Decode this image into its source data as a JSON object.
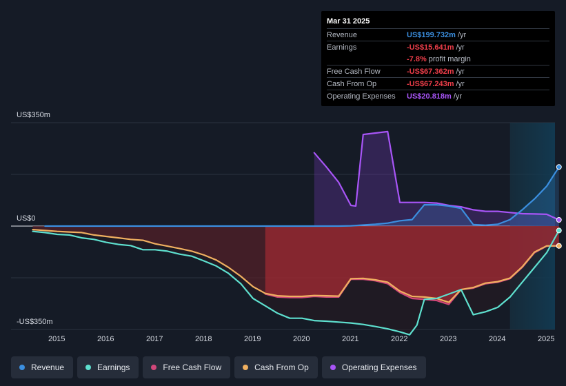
{
  "tooltip": {
    "date": "Mar 31 2025",
    "rows": [
      {
        "label": "Revenue",
        "value": "US$199.732m",
        "unit": "/yr",
        "color": "#3b8fe0"
      },
      {
        "label": "Earnings",
        "value": "-US$15.641m",
        "unit": "/yr",
        "color": "#ef3e4a"
      },
      {
        "label": "",
        "value": "-7.8%",
        "unit": "profit margin",
        "color": "#ef3e4a"
      },
      {
        "label": "Free Cash Flow",
        "value": "-US$67.362m",
        "unit": "/yr",
        "color": "#ef3e4a"
      },
      {
        "label": "Cash From Op",
        "value": "-US$67.243m",
        "unit": "/yr",
        "color": "#ef3e4a"
      },
      {
        "label": "Operating Expenses",
        "value": "US$20.818m",
        "unit": "/yr",
        "color": "#a855f7"
      }
    ]
  },
  "legend": [
    {
      "label": "Revenue",
      "color": "#3b8fe0"
    },
    {
      "label": "Earnings",
      "color": "#5ee0cf"
    },
    {
      "label": "Free Cash Flow",
      "color": "#d1477a"
    },
    {
      "label": "Cash From Op",
      "color": "#f0b060"
    },
    {
      "label": "Operating Expenses",
      "color": "#a855f7"
    }
  ],
  "chart_data": {
    "type": "area",
    "y_labels": [
      "US$350m",
      "US$0",
      "-US$350m"
    ],
    "ylim": [
      -350,
      350
    ],
    "xlim": [
      2014.5,
      2025.25
    ],
    "x_ticks": [
      "2015",
      "2016",
      "2017",
      "2018",
      "2019",
      "2020",
      "2021",
      "2022",
      "2023",
      "2024",
      "2025"
    ],
    "highlight_from": 2024.25,
    "series": [
      {
        "name": "Revenue",
        "color": "#3b8fe0",
        "points": [
          [
            2014.75,
            0
          ],
          [
            2016,
            0
          ],
          [
            2018,
            0
          ],
          [
            2019,
            0
          ],
          [
            2020,
            0
          ],
          [
            2020.75,
            0
          ],
          [
            2021,
            1
          ],
          [
            2021.5,
            6
          ],
          [
            2021.75,
            10
          ],
          [
            2022,
            18
          ],
          [
            2022.25,
            22
          ],
          [
            2022.5,
            72
          ],
          [
            2022.75,
            72
          ],
          [
            2023,
            68
          ],
          [
            2023.25,
            60
          ],
          [
            2023.5,
            5
          ],
          [
            2023.75,
            3
          ],
          [
            2024,
            6
          ],
          [
            2024.25,
            22
          ],
          [
            2024.5,
            55
          ],
          [
            2024.75,
            92
          ],
          [
            2025,
            135
          ],
          [
            2025.25,
            200
          ]
        ]
      },
      {
        "name": "Earnings",
        "color": "#5ee0cf",
        "points": [
          [
            2014.5,
            -18
          ],
          [
            2014.75,
            -22
          ],
          [
            2015,
            -28
          ],
          [
            2015.25,
            -30
          ],
          [
            2015.5,
            -40
          ],
          [
            2015.75,
            -45
          ],
          [
            2016,
            -55
          ],
          [
            2016.25,
            -62
          ],
          [
            2016.5,
            -66
          ],
          [
            2016.75,
            -80
          ],
          [
            2017,
            -80
          ],
          [
            2017.25,
            -85
          ],
          [
            2017.5,
            -95
          ],
          [
            2017.75,
            -102
          ],
          [
            2018,
            -118
          ],
          [
            2018.25,
            -135
          ],
          [
            2018.5,
            -160
          ],
          [
            2018.75,
            -195
          ],
          [
            2019,
            -245
          ],
          [
            2019.25,
            -270
          ],
          [
            2019.5,
            -295
          ],
          [
            2019.75,
            -312
          ],
          [
            2020,
            -312
          ],
          [
            2020.25,
            -320
          ],
          [
            2020.5,
            -322
          ],
          [
            2020.75,
            -325
          ],
          [
            2021,
            -328
          ],
          [
            2021.25,
            -333
          ],
          [
            2021.5,
            -340
          ],
          [
            2021.75,
            -348
          ],
          [
            2022,
            -358
          ],
          [
            2022.2,
            -368
          ],
          [
            2022.35,
            -335
          ],
          [
            2022.5,
            -248
          ],
          [
            2022.75,
            -245
          ],
          [
            2023,
            -230
          ],
          [
            2023.25,
            -215
          ],
          [
            2023.5,
            -300
          ],
          [
            2023.75,
            -290
          ],
          [
            2024,
            -275
          ],
          [
            2024.25,
            -240
          ],
          [
            2024.5,
            -190
          ],
          [
            2024.75,
            -140
          ],
          [
            2025,
            -90
          ],
          [
            2025.25,
            -15
          ]
        ]
      },
      {
        "name": "Free Cash Flow",
        "color": "#d1477a",
        "points": [
          [
            2019.25,
            -230
          ],
          [
            2019.5,
            -240
          ],
          [
            2019.75,
            -242
          ],
          [
            2020,
            -242
          ],
          [
            2020.25,
            -238
          ],
          [
            2020.5,
            -240
          ],
          [
            2020.75,
            -240
          ],
          [
            2021,
            -180
          ],
          [
            2021.25,
            -180
          ],
          [
            2021.5,
            -185
          ],
          [
            2021.75,
            -195
          ],
          [
            2022,
            -225
          ],
          [
            2022.25,
            -245
          ],
          [
            2022.5,
            -248
          ],
          [
            2022.75,
            -252
          ],
          [
            2023,
            -265
          ],
          [
            2023.25,
            -215
          ],
          [
            2023.5,
            -210
          ],
          [
            2023.75,
            -195
          ],
          [
            2024,
            -190
          ],
          [
            2024.25,
            -178
          ],
          [
            2024.5,
            -140
          ],
          [
            2024.75,
            -90
          ],
          [
            2025,
            -68
          ],
          [
            2025.25,
            -67
          ]
        ]
      },
      {
        "name": "Cash From Op",
        "color": "#f0b060",
        "points": [
          [
            2014.5,
            -12
          ],
          [
            2014.75,
            -15
          ],
          [
            2015,
            -18
          ],
          [
            2015.25,
            -20
          ],
          [
            2015.5,
            -22
          ],
          [
            2015.75,
            -30
          ],
          [
            2016,
            -35
          ],
          [
            2016.25,
            -40
          ],
          [
            2016.5,
            -45
          ],
          [
            2016.75,
            -48
          ],
          [
            2017,
            -60
          ],
          [
            2017.25,
            -68
          ],
          [
            2017.5,
            -76
          ],
          [
            2017.75,
            -85
          ],
          [
            2018,
            -98
          ],
          [
            2018.25,
            -115
          ],
          [
            2018.5,
            -140
          ],
          [
            2018.75,
            -170
          ],
          [
            2019,
            -205
          ],
          [
            2019.25,
            -228
          ],
          [
            2019.5,
            -236
          ],
          [
            2019.75,
            -238
          ],
          [
            2020,
            -238
          ],
          [
            2020.25,
            -235
          ],
          [
            2020.5,
            -236
          ],
          [
            2020.75,
            -237
          ],
          [
            2021,
            -178
          ],
          [
            2021.25,
            -177
          ],
          [
            2021.5,
            -182
          ],
          [
            2021.75,
            -190
          ],
          [
            2022,
            -220
          ],
          [
            2022.25,
            -238
          ],
          [
            2022.5,
            -240
          ],
          [
            2022.75,
            -245
          ],
          [
            2023,
            -258
          ],
          [
            2023.25,
            -215
          ],
          [
            2023.5,
            -208
          ],
          [
            2023.75,
            -193
          ],
          [
            2024,
            -188
          ],
          [
            2024.25,
            -176
          ],
          [
            2024.5,
            -138
          ],
          [
            2024.75,
            -88
          ],
          [
            2025,
            -67
          ],
          [
            2025.25,
            -67
          ]
        ]
      },
      {
        "name": "Operating Expenses",
        "color": "#a855f7",
        "points": [
          [
            2020.25,
            248
          ],
          [
            2020.5,
            200
          ],
          [
            2020.75,
            148
          ],
          [
            2021,
            70
          ],
          [
            2021.1,
            68
          ],
          [
            2021.25,
            310
          ],
          [
            2021.5,
            315
          ],
          [
            2021.75,
            320
          ],
          [
            2022,
            80
          ],
          [
            2022.25,
            80
          ],
          [
            2022.5,
            80
          ],
          [
            2022.75,
            78
          ],
          [
            2023,
            70
          ],
          [
            2023.25,
            65
          ],
          [
            2023.5,
            55
          ],
          [
            2023.75,
            50
          ],
          [
            2024,
            50
          ],
          [
            2024.25,
            46
          ],
          [
            2024.5,
            42
          ],
          [
            2024.75,
            41
          ],
          [
            2025,
            40
          ],
          [
            2025.25,
            21
          ]
        ]
      }
    ]
  }
}
